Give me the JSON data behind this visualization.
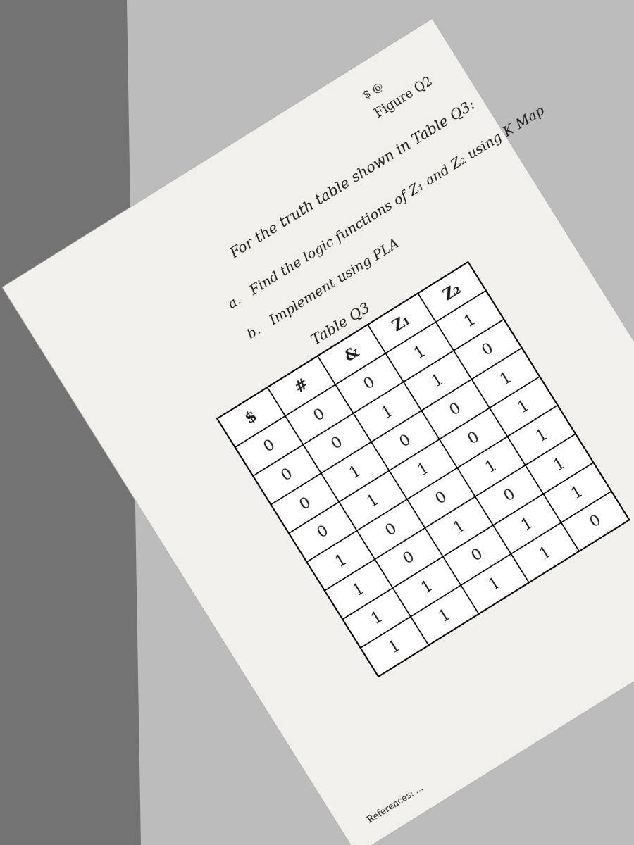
{
  "figure_label": "Figure Q2",
  "dollar_at": "$ @",
  "title_line1": "For the truth table shown in Table Q3:",
  "point_a": "a.   Find the logic functions of Z₁ and Z₂ using K Map",
  "point_b": "b.   Implement using PLA",
  "table_title": "Table Q3",
  "col_headers": [
    "$",
    "#",
    "&",
    "Z₁",
    "Z₂"
  ],
  "table_data": [
    [
      "0",
      "0",
      "0",
      "1",
      "1"
    ],
    [
      "0",
      "0",
      "1",
      "1",
      "0"
    ],
    [
      "0",
      "1",
      "0",
      "0",
      "1"
    ],
    [
      "0",
      "1",
      "1",
      "0",
      "1"
    ],
    [
      "1",
      "0",
      "0",
      "1",
      "1"
    ],
    [
      "1",
      "0",
      "1",
      "0",
      "1"
    ],
    [
      "1",
      "1",
      "0",
      "1",
      "1"
    ],
    [
      "1",
      "1",
      "1",
      "1",
      "0"
    ]
  ],
  "shadow_color": "#7a7a7a",
  "bg_color": "#bcbcbc",
  "paper_color": "#f2f0eb",
  "text_color": "#1a1a1a",
  "rotation_deg": 32,
  "title_fontsize": 15,
  "body_fontsize": 14,
  "table_fontsize": 16,
  "header_fontsize": 16,
  "small_fontsize": 11,
  "bottom_text": "References: ..."
}
